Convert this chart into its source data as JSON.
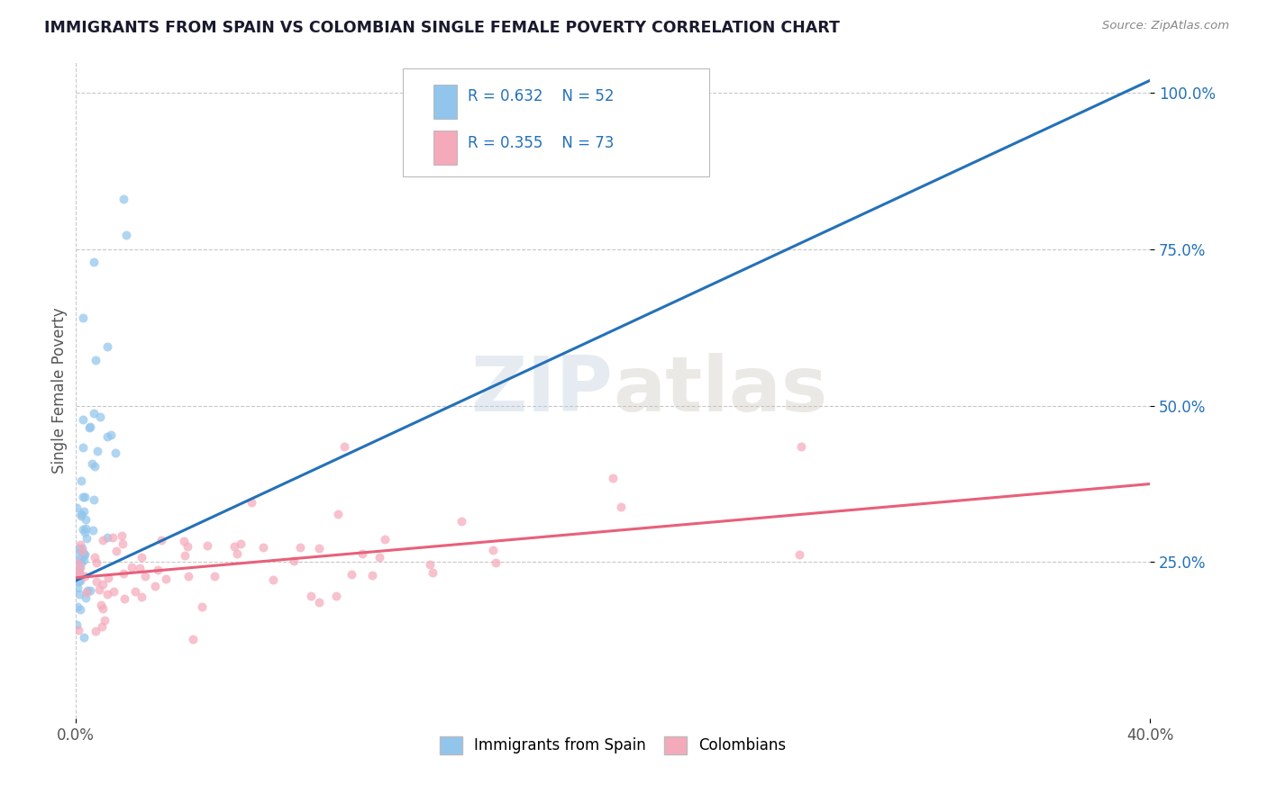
{
  "title": "IMMIGRANTS FROM SPAIN VS COLOMBIAN SINGLE FEMALE POVERTY CORRELATION CHART",
  "source": "Source: ZipAtlas.com",
  "ylabel": "Single Female Poverty",
  "xlim": [
    0.0,
    0.4
  ],
  "ylim": [
    0.0,
    1.05
  ],
  "series1_color": "#92C5EC",
  "series2_color": "#F4AABB",
  "series1_label": "Immigrants from Spain",
  "series2_label": "Colombians",
  "series1_R": 0.632,
  "series1_N": 52,
  "series2_R": 0.355,
  "series2_N": 73,
  "trendline1_color": "#2471B8",
  "trendline2_color": "#E8607A",
  "legend_text_color": "#2471B8",
  "background_color": "#FFFFFF",
  "grid_color": "#C8C8C8",
  "trendline1_x0": 0.0,
  "trendline1_y0": 0.22,
  "trendline1_x1": 0.4,
  "trendline1_y1": 1.02,
  "trendline2_x0": 0.0,
  "trendline2_y0": 0.225,
  "trendline2_x1": 0.4,
  "trendline2_y1": 0.375
}
